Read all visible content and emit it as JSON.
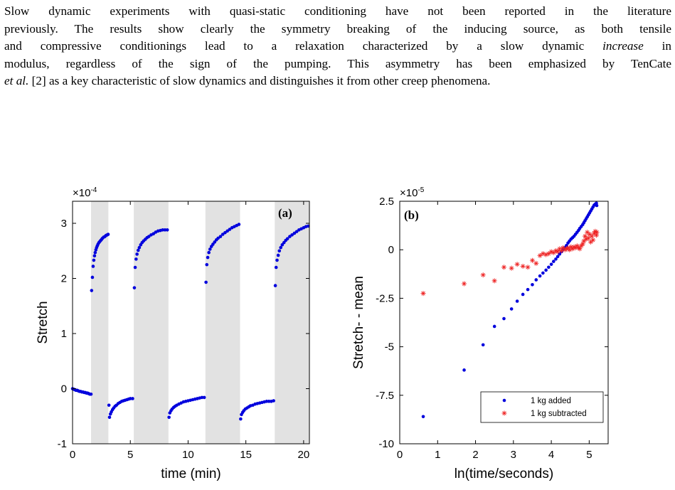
{
  "paragraph": {
    "line1": "Slow dynamic experiments with quasi-static conditioning have not been reported in the literature",
    "line2": "previously. The results show clearly the symmetry breaking of the inducing source, as both tensile",
    "line3a": "and compressive conditionings lead to a relaxation characterized by a slow dynamic ",
    "line3b": "increase",
    "line3c": " in",
    "line4": "modulus, regardless of the sign of the pumping. This asymmetry has been emphasized by TenCate",
    "line5a": "et al.",
    "line5b": " [2] as a key characteristic of slow dynamics and distinguishes it from other creep phenomena."
  },
  "chart_data": [
    {
      "type": "scatter",
      "panel_label": "(a)",
      "xlabel": "time (min)",
      "ylabel": "Stretch",
      "y_multiplier": "×10",
      "y_exponent": "-4",
      "xlim": [
        0,
        20.5
      ],
      "ylim": [
        -1,
        3.4
      ],
      "xticks": [
        0,
        5,
        10,
        15,
        20
      ],
      "yticks": [
        -1,
        0,
        1,
        2,
        3
      ],
      "shaded_intervals": [
        [
          1.6,
          3.1
        ],
        [
          5.3,
          8.3
        ],
        [
          11.5,
          14.5
        ],
        [
          17.5,
          20.5
        ]
      ],
      "series": [
        {
          "color": "#0000dd",
          "points": [
            [
              0.0,
              0.0
            ],
            [
              0.1,
              -0.01
            ],
            [
              0.2,
              -0.02
            ],
            [
              0.3,
              -0.03
            ],
            [
              0.4,
              -0.03
            ],
            [
              0.5,
              -0.04
            ],
            [
              0.6,
              -0.05
            ],
            [
              0.7,
              -0.05
            ],
            [
              0.8,
              -0.06
            ],
            [
              0.9,
              -0.06
            ],
            [
              1.0,
              -0.07
            ],
            [
              1.1,
              -0.07
            ],
            [
              1.2,
              -0.08
            ],
            [
              1.3,
              -0.08
            ],
            [
              1.4,
              -0.09
            ],
            [
              1.5,
              -0.1
            ],
            [
              1.6,
              -0.1
            ],
            [
              1.65,
              1.78
            ],
            [
              1.72,
              2.02
            ],
            [
              1.78,
              2.22
            ],
            [
              1.84,
              2.33
            ],
            [
              1.9,
              2.41
            ],
            [
              1.96,
              2.47
            ],
            [
              2.02,
              2.52
            ],
            [
              2.08,
              2.56
            ],
            [
              2.14,
              2.59
            ],
            [
              2.2,
              2.62
            ],
            [
              2.28,
              2.65
            ],
            [
              2.36,
              2.67
            ],
            [
              2.44,
              2.69
            ],
            [
              2.52,
              2.71
            ],
            [
              2.6,
              2.73
            ],
            [
              2.7,
              2.75
            ],
            [
              2.8,
              2.76
            ],
            [
              2.9,
              2.78
            ],
            [
              3.0,
              2.79
            ],
            [
              3.08,
              2.8
            ],
            [
              3.15,
              -0.3
            ],
            [
              3.2,
              -0.52
            ],
            [
              3.28,
              -0.46
            ],
            [
              3.36,
              -0.42
            ],
            [
              3.46,
              -0.38
            ],
            [
              3.56,
              -0.35
            ],
            [
              3.68,
              -0.32
            ],
            [
              3.8,
              -0.3
            ],
            [
              3.95,
              -0.27
            ],
            [
              4.1,
              -0.25
            ],
            [
              4.25,
              -0.23
            ],
            [
              4.4,
              -0.22
            ],
            [
              4.55,
              -0.21
            ],
            [
              4.7,
              -0.2
            ],
            [
              4.85,
              -0.19
            ],
            [
              5.0,
              -0.18
            ],
            [
              5.2,
              -0.18
            ],
            [
              5.35,
              1.83
            ],
            [
              5.42,
              2.2
            ],
            [
              5.5,
              2.35
            ],
            [
              5.58,
              2.44
            ],
            [
              5.68,
              2.51
            ],
            [
              5.78,
              2.56
            ],
            [
              5.9,
              2.61
            ],
            [
              6.02,
              2.65
            ],
            [
              6.15,
              2.68
            ],
            [
              6.3,
              2.71
            ],
            [
              6.45,
              2.74
            ],
            [
              6.6,
              2.76
            ],
            [
              6.8,
              2.79
            ],
            [
              7.0,
              2.81
            ],
            [
              7.2,
              2.84
            ],
            [
              7.4,
              2.86
            ],
            [
              7.6,
              2.87
            ],
            [
              7.8,
              2.88
            ],
            [
              8.0,
              2.88
            ],
            [
              8.2,
              2.88
            ],
            [
              8.35,
              -0.52
            ],
            [
              8.42,
              -0.44
            ],
            [
              8.52,
              -0.4
            ],
            [
              8.62,
              -0.37
            ],
            [
              8.75,
              -0.34
            ],
            [
              8.88,
              -0.32
            ],
            [
              9.02,
              -0.3
            ],
            [
              9.2,
              -0.28
            ],
            [
              9.4,
              -0.26
            ],
            [
              9.6,
              -0.24
            ],
            [
              9.8,
              -0.23
            ],
            [
              10.0,
              -0.22
            ],
            [
              10.2,
              -0.21
            ],
            [
              10.4,
              -0.2
            ],
            [
              10.6,
              -0.19
            ],
            [
              10.8,
              -0.18
            ],
            [
              11.0,
              -0.17
            ],
            [
              11.2,
              -0.16
            ],
            [
              11.4,
              -0.16
            ],
            [
              11.55,
              1.93
            ],
            [
              11.62,
              2.25
            ],
            [
              11.7,
              2.38
            ],
            [
              11.8,
              2.47
            ],
            [
              11.9,
              2.53
            ],
            [
              12.02,
              2.58
            ],
            [
              12.15,
              2.62
            ],
            [
              12.3,
              2.66
            ],
            [
              12.45,
              2.7
            ],
            [
              12.6,
              2.73
            ],
            [
              12.8,
              2.76
            ],
            [
              13.0,
              2.8
            ],
            [
              13.2,
              2.83
            ],
            [
              13.4,
              2.86
            ],
            [
              13.6,
              2.89
            ],
            [
              13.8,
              2.92
            ],
            [
              14.0,
              2.94
            ],
            [
              14.2,
              2.96
            ],
            [
              14.4,
              2.98
            ],
            [
              14.55,
              -0.55
            ],
            [
              14.62,
              -0.47
            ],
            [
              14.72,
              -0.43
            ],
            [
              14.82,
              -0.4
            ],
            [
              14.95,
              -0.37
            ],
            [
              15.1,
              -0.35
            ],
            [
              15.25,
              -0.33
            ],
            [
              15.4,
              -0.31
            ],
            [
              15.6,
              -0.3
            ],
            [
              15.8,
              -0.28
            ],
            [
              16.0,
              -0.27
            ],
            [
              16.2,
              -0.26
            ],
            [
              16.4,
              -0.25
            ],
            [
              16.6,
              -0.24
            ],
            [
              16.8,
              -0.23
            ],
            [
              17.0,
              -0.23
            ],
            [
              17.2,
              -0.23
            ],
            [
              17.4,
              -0.22
            ],
            [
              17.55,
              1.87
            ],
            [
              17.62,
              2.2
            ],
            [
              17.7,
              2.33
            ],
            [
              17.8,
              2.42
            ],
            [
              17.9,
              2.5
            ],
            [
              18.02,
              2.56
            ],
            [
              18.15,
              2.61
            ],
            [
              18.3,
              2.65
            ],
            [
              18.45,
              2.69
            ],
            [
              18.6,
              2.72
            ],
            [
              18.8,
              2.76
            ],
            [
              19.0,
              2.79
            ],
            [
              19.2,
              2.82
            ],
            [
              19.4,
              2.85
            ],
            [
              19.6,
              2.88
            ],
            [
              19.8,
              2.9
            ],
            [
              20.0,
              2.92
            ],
            [
              20.2,
              2.94
            ],
            [
              20.4,
              2.95
            ]
          ]
        }
      ]
    },
    {
      "type": "scatter",
      "panel_label": "(b)",
      "xlabel": "ln(time/seconds)",
      "ylabel": "Stretch- - mean",
      "y_multiplier": "×10",
      "y_exponent": "-5",
      "xlim": [
        0,
        5.5
      ],
      "ylim": [
        -10,
        2.5
      ],
      "xticks": [
        0,
        1,
        2,
        3,
        4,
        5
      ],
      "yticks": [
        -10,
        -7.5,
        -5,
        -2.5,
        0,
        2.5
      ],
      "legend_position": "bottom-right",
      "series": [
        {
          "name": "1 kg added",
          "marker": "dot",
          "color": "#0000dd",
          "points": [
            [
              0.62,
              -8.6
            ],
            [
              1.7,
              -6.2
            ],
            [
              2.2,
              -4.9
            ],
            [
              2.5,
              -3.95
            ],
            [
              2.75,
              -3.55
            ],
            [
              2.95,
              -3.05
            ],
            [
              3.1,
              -2.65
            ],
            [
              3.25,
              -2.3
            ],
            [
              3.38,
              -2.05
            ],
            [
              3.5,
              -1.8
            ],
            [
              3.6,
              -1.55
            ],
            [
              3.7,
              -1.35
            ],
            [
              3.78,
              -1.2
            ],
            [
              3.86,
              -1.05
            ],
            [
              3.93,
              -0.9
            ],
            [
              4.0,
              -0.75
            ],
            [
              4.06,
              -0.6
            ],
            [
              4.12,
              -0.48
            ],
            [
              4.17,
              -0.35
            ],
            [
              4.22,
              -0.22
            ],
            [
              4.27,
              -0.1
            ],
            [
              4.31,
              0.02
            ],
            [
              4.36,
              0.12
            ],
            [
              4.4,
              0.22
            ],
            [
              4.44,
              0.35
            ],
            [
              4.48,
              0.45
            ],
            [
              4.52,
              0.55
            ],
            [
              4.56,
              0.62
            ],
            [
              4.6,
              0.7
            ],
            [
              4.64,
              0.8
            ],
            [
              4.68,
              0.9
            ],
            [
              4.72,
              1.0
            ],
            [
              4.75,
              1.1
            ],
            [
              4.79,
              1.2
            ],
            [
              4.83,
              1.3
            ],
            [
              4.86,
              1.4
            ],
            [
              4.89,
              1.5
            ],
            [
              4.92,
              1.6
            ],
            [
              4.95,
              1.7
            ],
            [
              4.98,
              1.8
            ],
            [
              5.01,
              1.9
            ],
            [
              5.04,
              2.0
            ],
            [
              5.07,
              2.1
            ],
            [
              5.1,
              2.2
            ],
            [
              5.13,
              2.3
            ],
            [
              5.16,
              2.35
            ],
            [
              5.19,
              2.4
            ],
            [
              5.2,
              2.28
            ]
          ]
        },
        {
          "name": "1 kg subtracted",
          "marker": "star",
          "color": "#ee2222",
          "points": [
            [
              0.62,
              -2.25
            ],
            [
              1.7,
              -1.75
            ],
            [
              2.2,
              -1.3
            ],
            [
              2.5,
              -1.6
            ],
            [
              2.75,
              -0.9
            ],
            [
              2.95,
              -0.95
            ],
            [
              3.1,
              -0.75
            ],
            [
              3.25,
              -0.85
            ],
            [
              3.38,
              -0.9
            ],
            [
              3.5,
              -0.55
            ],
            [
              3.6,
              -0.7
            ],
            [
              3.7,
              -0.3
            ],
            [
              3.78,
              -0.2
            ],
            [
              3.86,
              -0.25
            ],
            [
              3.93,
              -0.2
            ],
            [
              4.0,
              -0.1
            ],
            [
              4.06,
              -0.15
            ],
            [
              4.12,
              -0.05
            ],
            [
              4.17,
              -0.1
            ],
            [
              4.22,
              0.05
            ],
            [
              4.27,
              -0.05
            ],
            [
              4.31,
              0.1
            ],
            [
              4.36,
              0.0
            ],
            [
              4.4,
              0.05
            ],
            [
              4.44,
              0.1
            ],
            [
              4.48,
              0.0
            ],
            [
              4.52,
              0.15
            ],
            [
              4.56,
              0.05
            ],
            [
              4.6,
              0.15
            ],
            [
              4.64,
              0.1
            ],
            [
              4.68,
              0.2
            ],
            [
              4.72,
              0.1
            ],
            [
              4.75,
              0.05
            ],
            [
              4.79,
              0.2
            ],
            [
              4.83,
              0.3
            ],
            [
              4.86,
              0.45
            ],
            [
              4.89,
              0.7
            ],
            [
              4.92,
              0.55
            ],
            [
              4.95,
              0.9
            ],
            [
              4.98,
              0.6
            ],
            [
              5.01,
              0.8
            ],
            [
              5.04,
              0.4
            ],
            [
              5.07,
              0.7
            ],
            [
              5.1,
              0.5
            ],
            [
              5.13,
              0.85
            ],
            [
              5.16,
              0.95
            ],
            [
              5.19,
              0.75
            ],
            [
              5.2,
              0.9
            ]
          ]
        }
      ]
    }
  ]
}
